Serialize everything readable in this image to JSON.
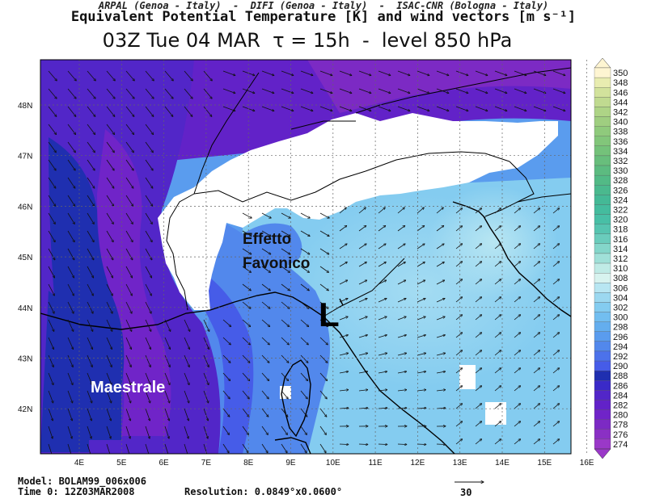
{
  "header": {
    "line1": "ARPAL (Genoa - Italy)  -  DIFI (Genoa - Italy)  -  ISAC-CNR (Bologna - Italy)",
    "line2": "Equivalent Potential Temperature [K] and wind vectors [m s⁻¹]",
    "line3": "03Z Tue 04 MAR  τ = 15h  -  level 850 hPa"
  },
  "map": {
    "lat_labels": [
      "48N",
      "47N",
      "46N",
      "45N",
      "44N",
      "43N",
      "42N"
    ],
    "lon_labels": [
      "4E",
      "5E",
      "6E",
      "7E",
      "8E",
      "9E",
      "10E",
      "11E",
      "12E",
      "13E",
      "14E",
      "15E",
      "16E"
    ],
    "annotations": {
      "effetto": "Effetto",
      "favonico": "Favonico",
      "low": "L",
      "maestrale": "Maestrale"
    }
  },
  "colorbar": {
    "levels": [
      "350",
      "348",
      "346",
      "344",
      "342",
      "340",
      "338",
      "336",
      "334",
      "332",
      "330",
      "328",
      "326",
      "324",
      "322",
      "320",
      "318",
      "316",
      "314",
      "312",
      "310",
      "308",
      "306",
      "304",
      "302",
      "300",
      "298",
      "296",
      "294",
      "292",
      "290",
      "288",
      "286",
      "284",
      "282",
      "280",
      "278",
      "276",
      "274"
    ],
    "colors": {
      "350": "#fef5d2",
      "348": "#e8ecb0",
      "346": "#d2e29c",
      "344": "#c0da90",
      "342": "#aed486",
      "340": "#9fce80",
      "338": "#8fca7c",
      "336": "#82c67a",
      "334": "#74c27a",
      "332": "#68be7c",
      "330": "#5cbb80",
      "328": "#52ba86",
      "326": "#4ab98e",
      "324": "#44b996",
      "322": "#44bc9e",
      "320": "#48bfa6",
      "318": "#56c4b0",
      "316": "#6accbc",
      "314": "#84d6ca",
      "312": "#a0e0d8",
      "310": "#c0ebe6",
      "308": "#d8f3ef",
      "306": "#b8e6f2",
      "304": "#9cd8f0",
      "302": "#84ccf0",
      "300": "#72bef0",
      "298": "#64aeee",
      "296": "#5a9cee",
      "294": "#5288ec",
      "292": "#4c72ea",
      "290": "#465ce8",
      "288": "#1f2fb0",
      "286": "#3a2ac8",
      "284": "#5226c8",
      "282": "#6222c8",
      "280": "#7024c8",
      "278": "#7c2ac4",
      "276": "#8a30c4",
      "274": "#9a38c8"
    }
  },
  "footer": {
    "model": "Model: BOLAM99_006x006",
    "time0": "Time 0: 12Z03MAR2008",
    "resolution": "Resolution: 0.0849°x0.0600°",
    "ref_vector": "30"
  }
}
